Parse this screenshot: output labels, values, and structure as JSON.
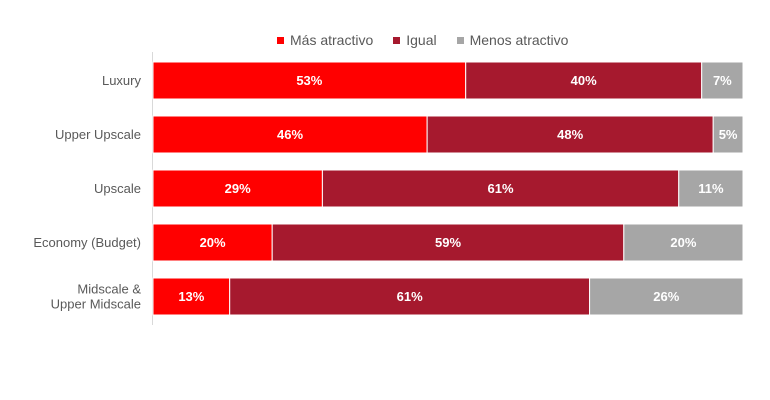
{
  "chart_data": {
    "type": "bar",
    "orientation": "horizontal",
    "stacked": "100%",
    "categories": [
      "Luxury",
      "Upper Upscale",
      "Upscale",
      "Economy (Budget)",
      "Midscale & Upper Midscale"
    ],
    "series": [
      {
        "name": "Más atractivo",
        "color": "#ff0000",
        "values": [
          53,
          46,
          29,
          20,
          13
        ],
        "labels": [
          "53%",
          "46%",
          "29%",
          "20%",
          "13%"
        ]
      },
      {
        "name": "Igual",
        "color": "#a6192e",
        "values": [
          40,
          48,
          61,
          59,
          61
        ],
        "labels": [
          "40%",
          "48%",
          "61%",
          "59%",
          "61%"
        ]
      },
      {
        "name": "Menos atractivo",
        "color": "#a6a6a6",
        "values": [
          7,
          5,
          11,
          20,
          26
        ],
        "labels": [
          "7%",
          "5%",
          "11%",
          "20%",
          "26%"
        ]
      }
    ],
    "legend_position": "top",
    "grid": false
  }
}
